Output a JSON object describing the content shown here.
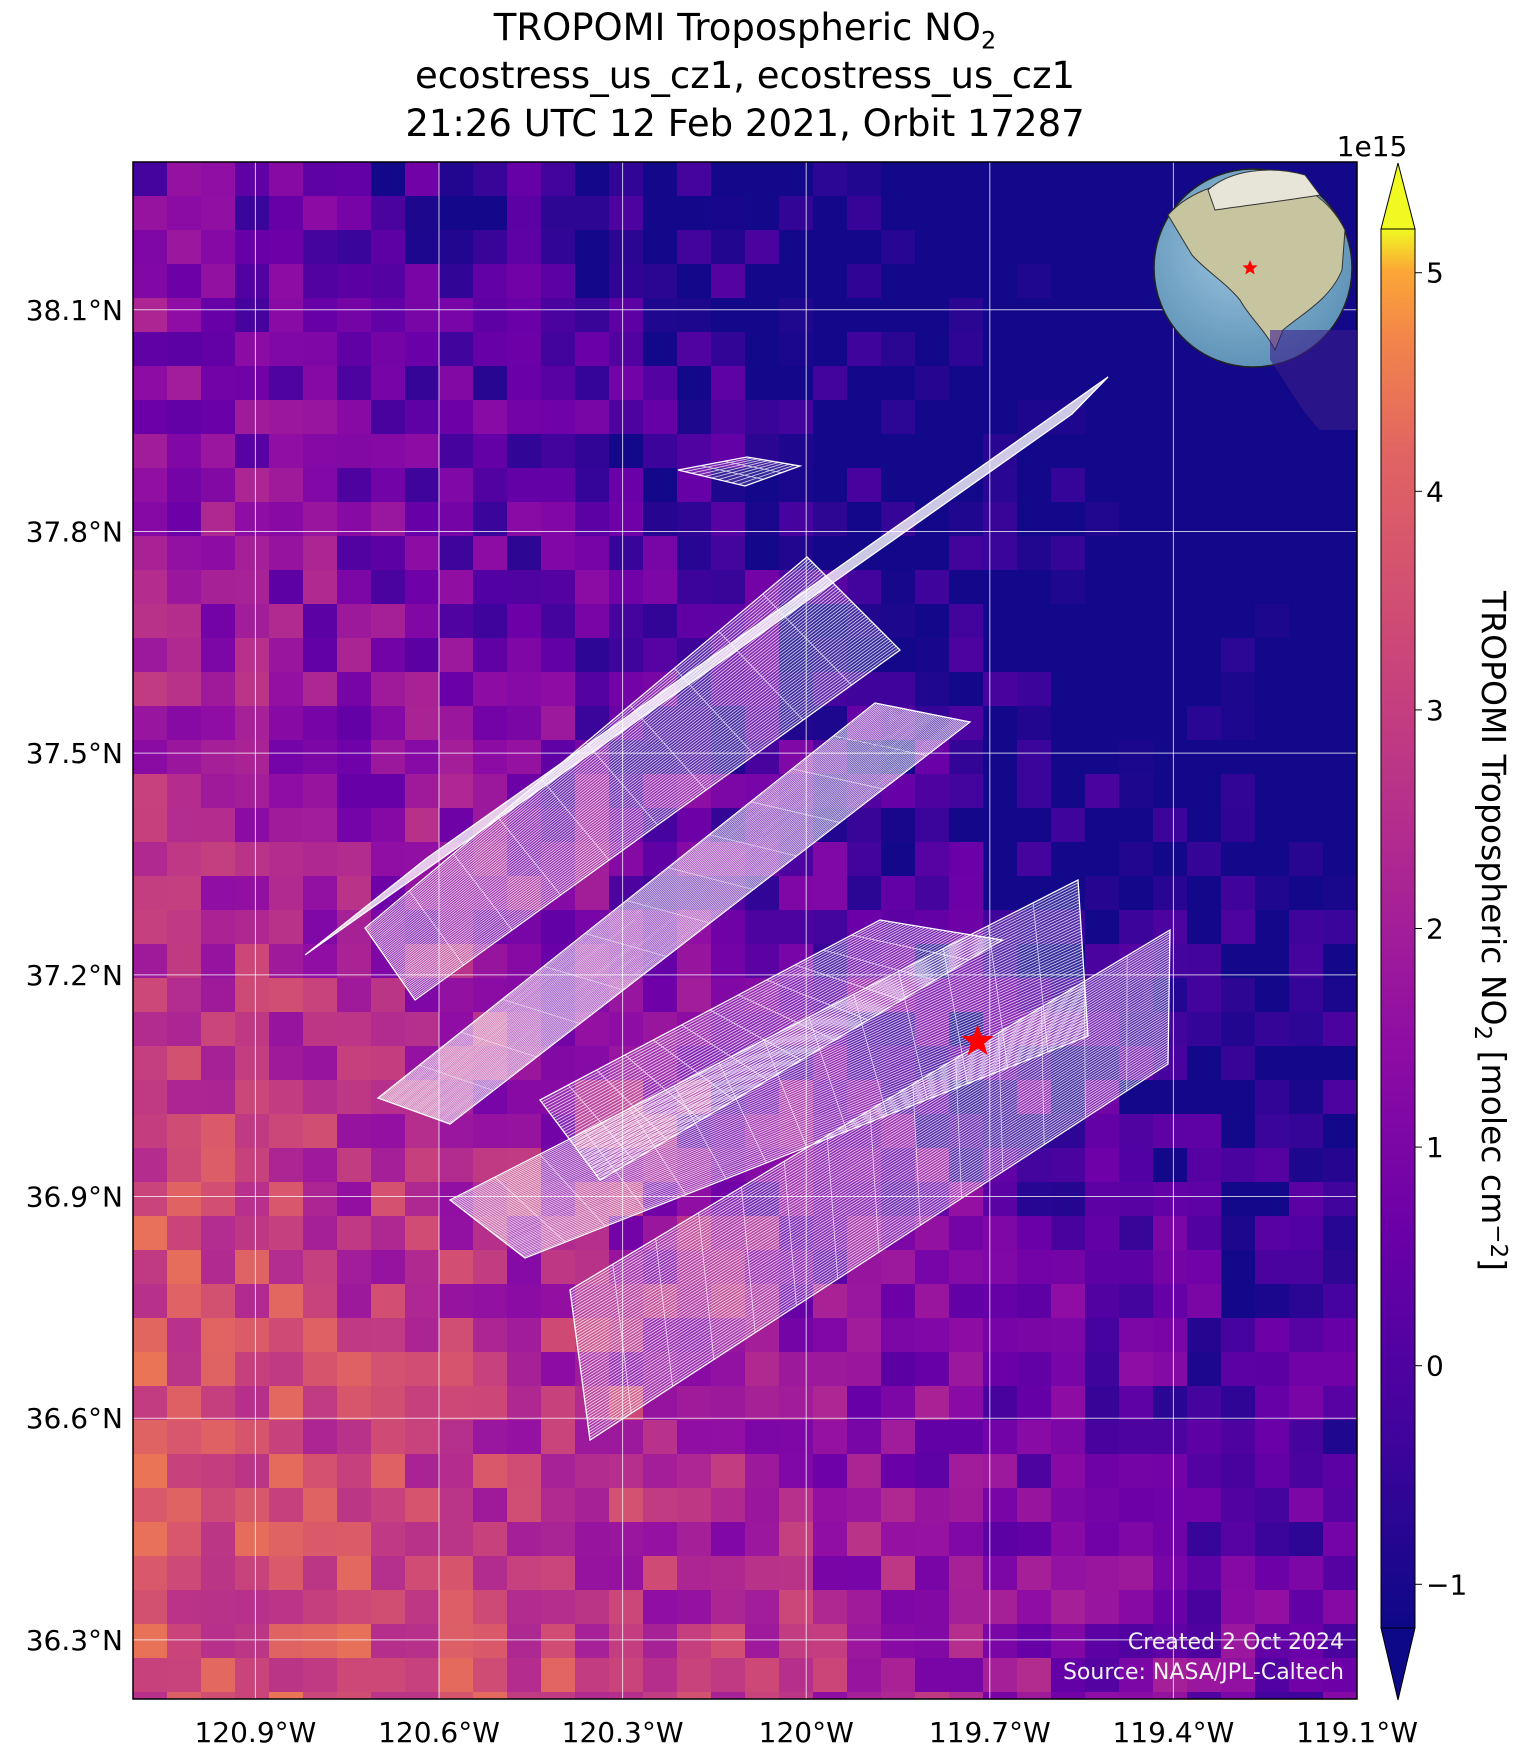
{
  "title": {
    "line1_prefix": "TROPOMI Tropospheric NO",
    "line1_sub": "2",
    "line2": "ecostress_us_cz1, ecostress_us_cz1",
    "line3": "21:26 UTC 12 Feb 2021, Orbit 17287"
  },
  "chart_data": {
    "type": "heatmap",
    "subject": "TROPOMI tropospheric NO2 column over central California with ECOSTRESS scene footprints overlaid",
    "x_axis": {
      "ticks": [
        -120.9,
        -120.6,
        -120.3,
        -120.0,
        -119.7,
        -119.4,
        -119.1
      ],
      "tick_labels": [
        "120.9°W",
        "120.6°W",
        "120.3°W",
        "120°W",
        "119.7°W",
        "119.4°W",
        "119.1°W"
      ],
      "range": [
        -121.1,
        -119.1
      ]
    },
    "y_axis": {
      "ticks": [
        36.3,
        36.6,
        36.9,
        37.2,
        37.5,
        37.8,
        38.1
      ],
      "tick_labels": [
        "36.3°N",
        "36.6°N",
        "36.9°N",
        "37.2°N",
        "37.5°N",
        "37.8°N",
        "38.1°N"
      ],
      "range": [
        36.22,
        38.3
      ]
    },
    "colorbar": {
      "label_prefix": "TROPOMI Tropospheric NO",
      "label_sub": "2",
      "label_units_prefix": " [molec cm",
      "label_units_sup": "−2",
      "label_units_suffix": "]",
      "scale_label": "1e15",
      "ticks": [
        -1,
        0,
        1,
        2,
        3,
        4,
        5
      ],
      "tick_labels": [
        "−1",
        "0",
        "1",
        "2",
        "3",
        "4",
        "5"
      ],
      "range": [
        -1.2,
        5.2
      ],
      "extend": "both",
      "colormap": "plasma"
    },
    "field_summary": "Highest NO2 (about 3–4.5e15) along the San Joaquin Valley in the southwest of the map; lowest values (about -1 to 1e15) over the Sierra Nevada to the northeast.",
    "marker": {
      "symbol": "star",
      "color": "#ff0000",
      "lon": -119.72,
      "lat": 37.11
    },
    "overlay": "ECOSTRESS footprint grids drawn in white",
    "grid": true,
    "inset": {
      "type": "globe",
      "marker": "star",
      "marker_color": "#ff0000"
    }
  },
  "footer": {
    "created": "Created 2 Oct 2024",
    "source": "Source: NASA/JPL-Caltech"
  }
}
